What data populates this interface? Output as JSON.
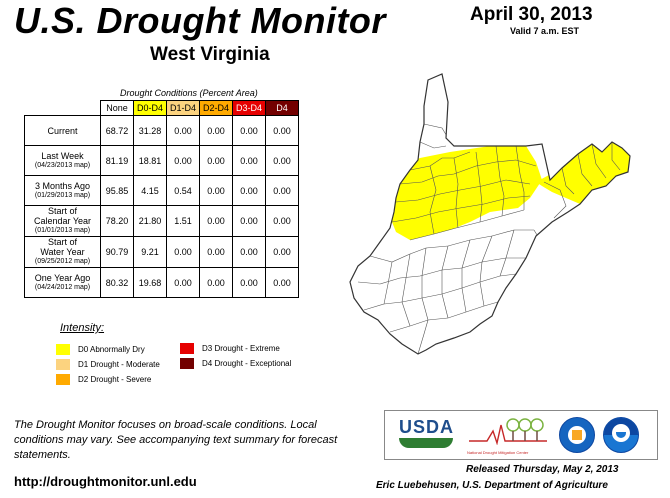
{
  "header": {
    "title": "U.S. Drought Monitor",
    "subtitle": "West Virginia",
    "date": "April 30, 2013",
    "valid": "Valid 7 a.m. EST"
  },
  "table": {
    "caption": "Drought Conditions (Percent Area)",
    "columns": [
      {
        "label": "None",
        "color": "#ffffff",
        "text_color": "#000000"
      },
      {
        "label": "D0-D4",
        "color": "#ffff00",
        "text_color": "#000000"
      },
      {
        "label": "D1-D4",
        "color": "#fcd37f",
        "text_color": "#000000"
      },
      {
        "label": "D2-D4",
        "color": "#ffaa00",
        "text_color": "#000000"
      },
      {
        "label": "D3-D4",
        "color": "#e60000",
        "text_color": "#ffffff"
      },
      {
        "label": "D4",
        "color": "#730000",
        "text_color": "#ffffff"
      }
    ],
    "rows": [
      {
        "label": "Current",
        "sub": "",
        "values": [
          "68.72",
          "31.28",
          "0.00",
          "0.00",
          "0.00",
          "0.00"
        ]
      },
      {
        "label": "Last Week",
        "sub": "(04/23/2013 map)",
        "values": [
          "81.19",
          "18.81",
          "0.00",
          "0.00",
          "0.00",
          "0.00"
        ]
      },
      {
        "label": "3 Months Ago",
        "sub": "(01/29/2013 map)",
        "values": [
          "95.85",
          "4.15",
          "0.54",
          "0.00",
          "0.00",
          "0.00"
        ]
      },
      {
        "label": "Start of\nCalendar Year",
        "sub": "(01/01/2013 map)",
        "values": [
          "78.20",
          "21.80",
          "1.51",
          "0.00",
          "0.00",
          "0.00"
        ]
      },
      {
        "label": "Start of\nWater Year",
        "sub": "(09/25/2012 map)",
        "values": [
          "90.79",
          "9.21",
          "0.00",
          "0.00",
          "0.00",
          "0.00"
        ]
      },
      {
        "label": "One Year Ago",
        "sub": "(04/24/2012 map)",
        "values": [
          "80.32",
          "19.68",
          "0.00",
          "0.00",
          "0.00",
          "0.00"
        ]
      }
    ]
  },
  "legend": {
    "title": "Intensity:",
    "items": [
      {
        "label": "D0 Abnormally Dry",
        "color": "#ffff00"
      },
      {
        "label": "D1 Drought - Moderate",
        "color": "#fcd37f"
      },
      {
        "label": "D2 Drought - Severe",
        "color": "#ffaa00"
      },
      {
        "label": "D3 Drought - Extreme",
        "color": "#e60000"
      },
      {
        "label": "D4 Drought - Exceptional",
        "color": "#730000"
      }
    ]
  },
  "note": "The Drought Monitor focuses on broad-scale conditions. Local conditions may vary. See accompanying text summary for forecast statements.",
  "url": "http://droughtmonitor.unl.edu",
  "logos": {
    "usda": "USDA",
    "ndmc": "National Drought Mitigation Center"
  },
  "released": "Released Thursday, May 2, 2013",
  "author": "Eric Luebehusen, U.S. Department of Agriculture",
  "map": {
    "d0_color": "#ffff00",
    "none_color": "#ffffff",
    "border_color": "#555555"
  }
}
